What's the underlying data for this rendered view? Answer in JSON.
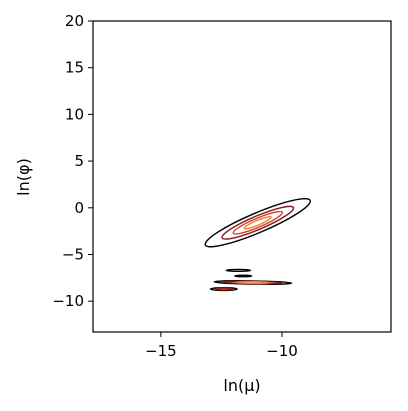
{
  "chart_data": {
    "type": "contour",
    "title": "",
    "xlabel": "ln(μ)",
    "ylabel": "ln(φ)",
    "xlim": [
      -17.8,
      -5.5
    ],
    "ylim": [
      -13.3,
      20
    ],
    "xticks": [
      -15,
      -10
    ],
    "xtick_labels": [
      "−15",
      "−10"
    ],
    "yticks": [
      20,
      15,
      10,
      5,
      0,
      -5,
      -10
    ],
    "ytick_labels": [
      "20",
      "15",
      "10",
      "5",
      "0",
      "−5",
      "−10"
    ],
    "grid": false,
    "legend": "none",
    "colormap": [
      "#000000",
      "#8b1a1a",
      "#d43d2a",
      "#f07b2e",
      "#fbc36a"
    ],
    "blobs": [
      {
        "name": "main",
        "center": [
          -11.0,
          -1.6
        ],
        "levels": [
          {
            "color": "#000000",
            "semi_axes": [
              2.35,
              1.05
            ],
            "angle_deg": -23
          },
          {
            "color": "#8b1a1a",
            "semi_axes": [
              1.6,
              0.72
            ],
            "angle_deg": -23
          },
          {
            "color": "#d43d2a",
            "semi_axes": [
              1.1,
              0.48
            ],
            "angle_deg": -23
          },
          {
            "color": "#f07b2e",
            "semi_axes": [
              0.6,
              0.26
            ],
            "angle_deg": -23
          }
        ]
      },
      {
        "name": "small-1",
        "center": [
          -11.8,
          -6.7
        ],
        "levels": [
          {
            "color": "#000000",
            "semi_axes": [
              0.5,
              0.1
            ],
            "angle_deg": 0
          }
        ]
      },
      {
        "name": "small-2",
        "center": [
          -11.6,
          -7.3
        ],
        "levels": [
          {
            "color": "#000000",
            "semi_axes": [
              0.35,
              0.08
            ],
            "angle_deg": 0
          }
        ]
      },
      {
        "name": "lower",
        "center": [
          -11.2,
          -8.0
        ],
        "levels": [
          {
            "color": "#000000",
            "semi_axes": [
              1.6,
              0.17
            ],
            "angle_deg": 1
          },
          {
            "color": "#8b1a1a",
            "semi_axes": [
              1.2,
              0.13
            ],
            "angle_deg": 1
          },
          {
            "color": "#f07b2e",
            "semi_axes": [
              0.7,
              0.09
            ],
            "angle_deg": 1
          }
        ]
      },
      {
        "name": "lower-left",
        "center": [
          -12.4,
          -8.7
        ],
        "levels": [
          {
            "color": "#000000",
            "semi_axes": [
              0.55,
              0.15
            ],
            "angle_deg": 0
          },
          {
            "color": "#8b1a1a",
            "semi_axes": [
              0.35,
              0.09
            ],
            "angle_deg": 0
          }
        ]
      }
    ]
  }
}
